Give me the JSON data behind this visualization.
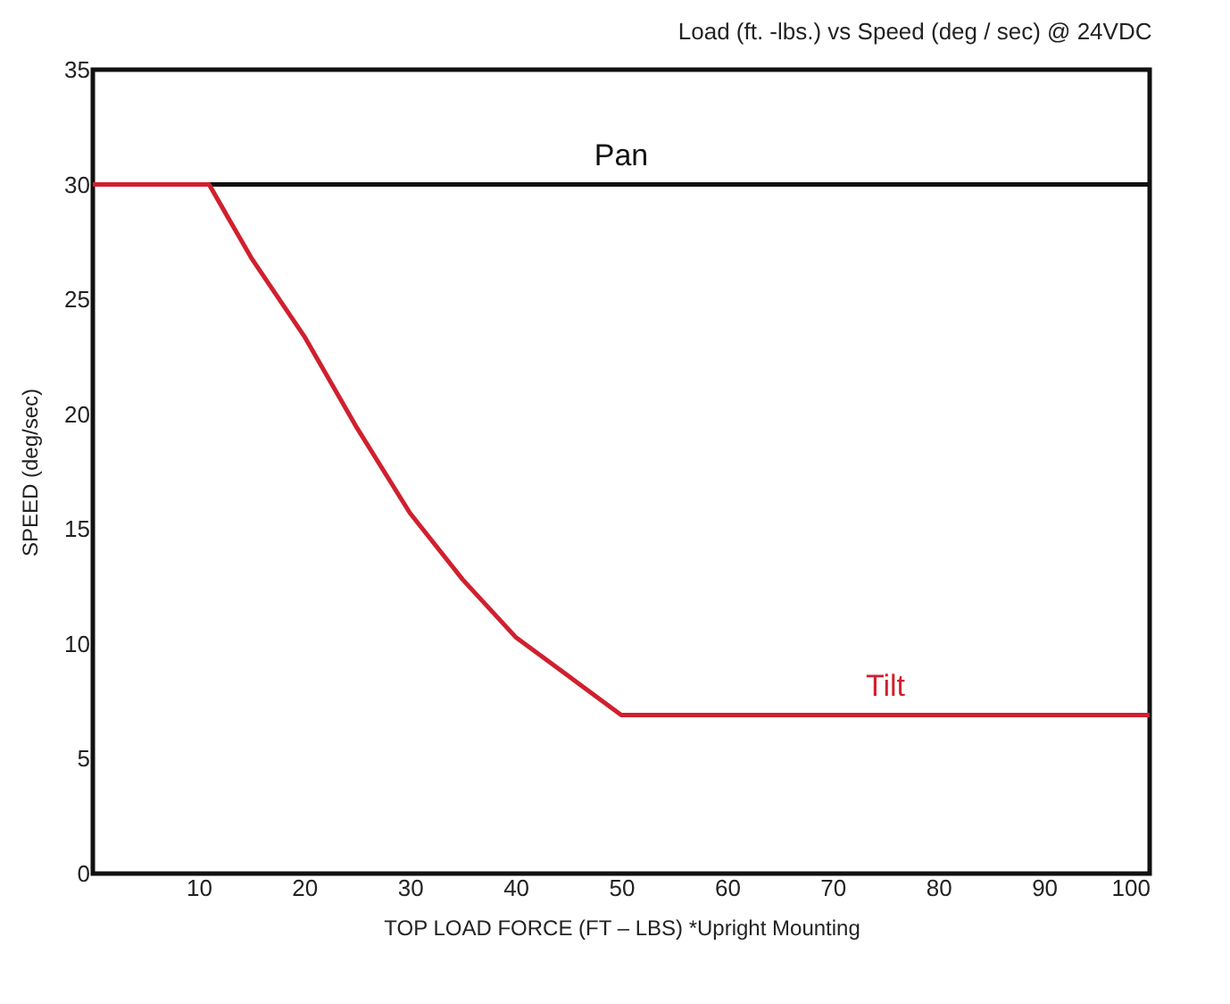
{
  "chart_data": {
    "type": "line",
    "title": "Load (ft. -lbs.) vs Speed (deg / sec) @ 24VDC",
    "xlabel": "TOP LOAD FORCE (FT – LBS) *Upright Mounting",
    "ylabel": "SPEED (deg/sec)",
    "xlim": [
      0,
      100
    ],
    "xticks": [
      10,
      20,
      30,
      40,
      50,
      60,
      70,
      80,
      90,
      100
    ],
    "ylim": [
      0,
      35
    ],
    "yticks": [
      0,
      5,
      10,
      15,
      20,
      25,
      30,
      35
    ],
    "grid": false,
    "marker": "none",
    "line_style": "solid",
    "series": [
      {
        "name": "Pan",
        "color": "#111111",
        "x": [
          0,
          100
        ],
        "values": [
          30,
          30
        ]
      },
      {
        "name": "Tilt",
        "color": "#d0202e",
        "x": [
          0,
          11,
          15,
          20,
          25,
          30,
          35,
          40,
          45,
          50,
          100
        ],
        "values": [
          30,
          30,
          26.8,
          23.4,
          19.4,
          15.7,
          12.8,
          10.3,
          8.6,
          6.9,
          6.9
        ]
      }
    ]
  }
}
